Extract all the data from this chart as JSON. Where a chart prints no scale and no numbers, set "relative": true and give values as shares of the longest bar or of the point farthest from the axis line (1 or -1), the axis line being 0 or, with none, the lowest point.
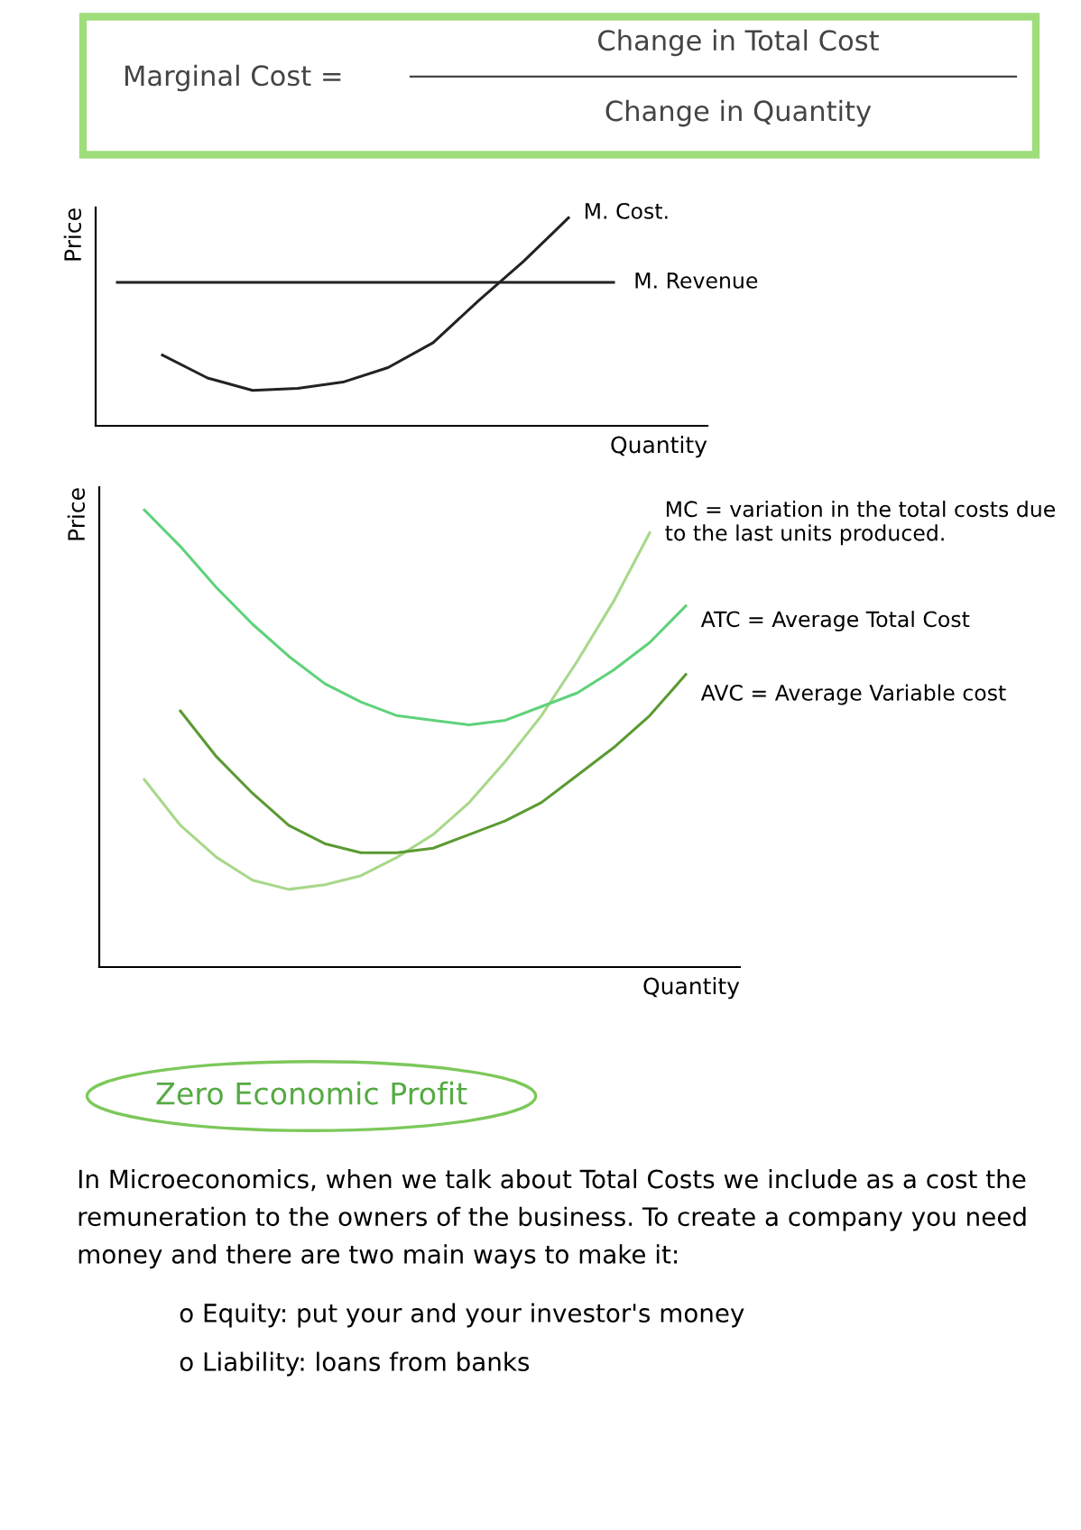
{
  "chart_data": [
    {
      "type": "other",
      "title": "Marginal Cost =",
      "annotations": [
        "Change in Total Cost",
        "Change in Quantity"
      ]
    },
    {
      "type": "line",
      "relative": true,
      "ylabel": "Price",
      "xlabel": "Quantity",
      "tick_labels": false,
      "legend": false,
      "grid": false,
      "categories": [
        null,
        null,
        null,
        null,
        null,
        null,
        null,
        null,
        null,
        null,
        null,
        null,
        null,
        null
      ],
      "series": [
        {
          "name": "M. Cost.",
          "color": "#222222",
          "values": [
            null,
            0.34,
            0.23,
            0.17,
            0.18,
            0.21,
            0.28,
            0.4,
            0.6,
            0.79,
            1.0,
            null,
            null,
            null
          ]
        },
        {
          "name": "M. Revenue",
          "color": "#222222",
          "values": [
            0.69,
            0.69,
            0.69,
            0.69,
            0.69,
            0.69,
            0.69,
            0.69,
            0.69,
            0.69,
            0.69,
            0.69,
            null,
            null
          ]
        }
      ]
    },
    {
      "type": "line",
      "relative": true,
      "ylabel": "Price",
      "xlabel": "Quantity",
      "tick_labels": false,
      "legend": false,
      "grid": false,
      "categories": [
        null,
        null,
        null,
        null,
        null,
        null,
        null,
        null,
        null,
        null,
        null,
        null,
        null,
        null,
        null,
        null
      ],
      "series": [
        {
          "name": "MC = variation in the total costs due to the last units produced.",
          "color": "#a8d88a",
          "values": [
            0.41,
            0.31,
            0.24,
            0.19,
            0.17,
            0.18,
            0.2,
            0.24,
            0.29,
            0.36,
            0.45,
            0.55,
            0.67,
            0.8,
            0.95,
            null
          ]
        },
        {
          "name": "ATC = Average Total Cost",
          "color": "#5fd27a",
          "values": [
            1.0,
            0.92,
            0.83,
            0.75,
            0.68,
            0.62,
            0.58,
            0.55,
            0.54,
            0.53,
            0.54,
            0.57,
            0.6,
            0.65,
            0.71,
            0.79
          ]
        },
        {
          "name": "AVC = Average Variable cost",
          "color": "#5b9a32",
          "values": [
            null,
            0.56,
            0.46,
            0.38,
            0.31,
            0.27,
            0.25,
            0.25,
            0.26,
            0.29,
            0.32,
            0.36,
            0.42,
            0.48,
            0.55,
            0.64
          ]
        }
      ]
    },
    {
      "type": "other",
      "title": "Zero Economic Profit",
      "annotations": [
        "In Microeconomics, when we talk about Total Costs we include as a cost the remuneration to the owners of the business. To create a company you need money and there are two main ways to make it:",
        "o Equity: put your and your investor's money",
        "o Liability: loans from banks"
      ]
    }
  ]
}
